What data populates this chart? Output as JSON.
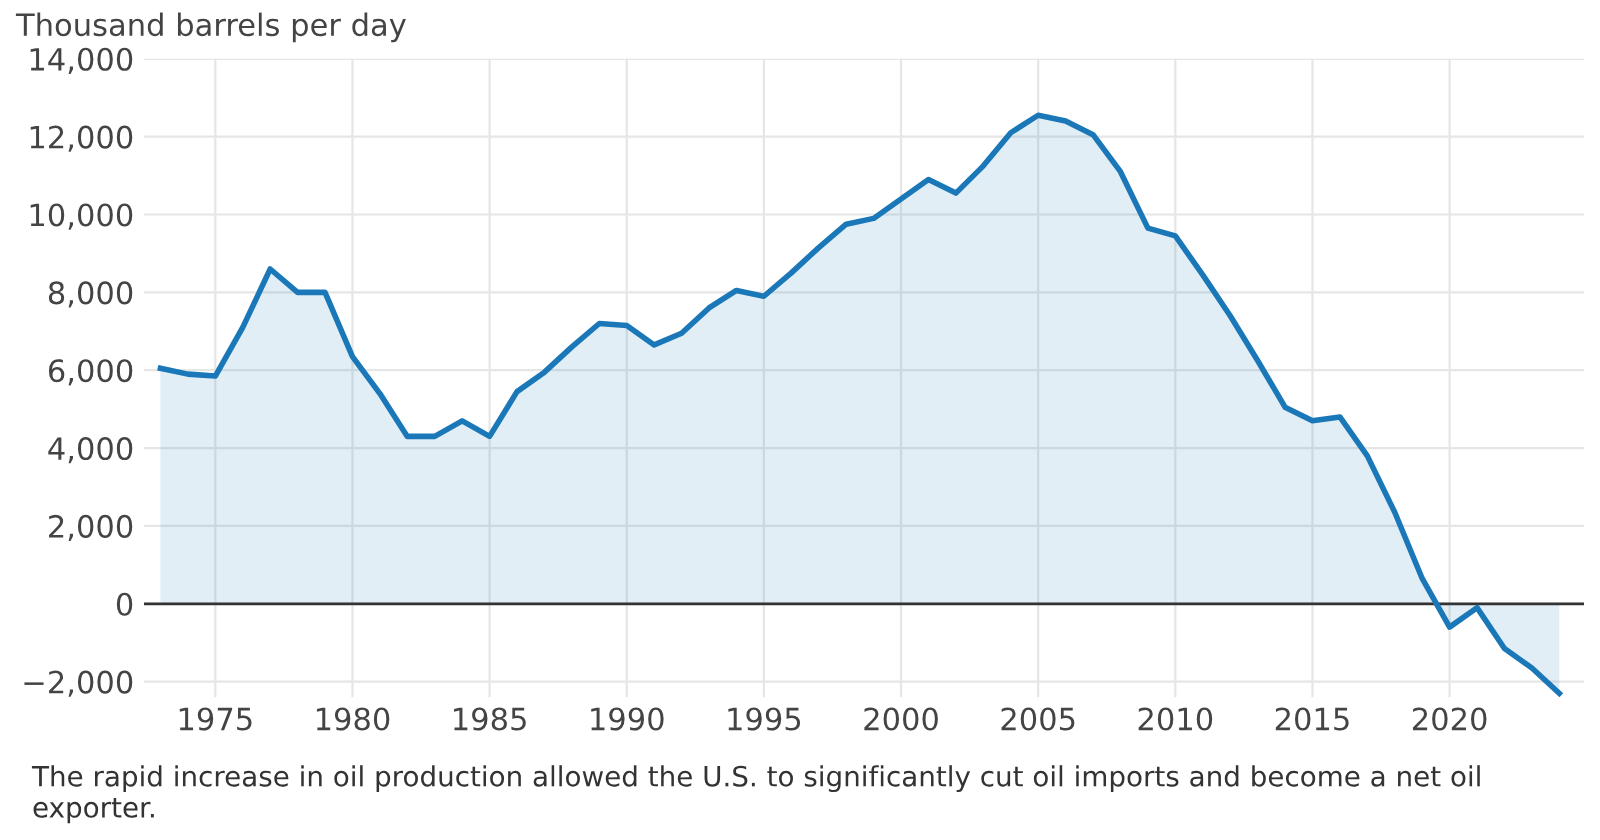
{
  "chart_data": {
    "type": "area",
    "ylabel": "Thousand barrels per day",
    "x": [
      1973,
      1974,
      1975,
      1976,
      1977,
      1978,
      1979,
      1980,
      1981,
      1982,
      1983,
      1984,
      1985,
      1986,
      1987,
      1988,
      1989,
      1990,
      1991,
      1992,
      1993,
      1994,
      1995,
      1996,
      1997,
      1998,
      1999,
      2000,
      2001,
      2002,
      2003,
      2004,
      2005,
      2006,
      2007,
      2008,
      2009,
      2010,
      2011,
      2012,
      2013,
      2014,
      2015,
      2016,
      2017,
      2018,
      2019,
      2020,
      2021,
      2022,
      2023,
      2024
    ],
    "series": [
      {
        "color": "#1b78b8",
        "values": [
          6050,
          5900,
          5850,
          7100,
          8600,
          8000,
          8000,
          6350,
          5400,
          4300,
          4300,
          4700,
          4300,
          5450,
          5950,
          6600,
          7200,
          7150,
          6650,
          6950,
          7600,
          8050,
          7900,
          8500,
          9150,
          9750,
          9900,
          10400,
          10900,
          10550,
          11250,
          12100,
          12550,
          12400,
          12050,
          11100,
          9650,
          9450,
          8450,
          7400,
          6250,
          5050,
          4700,
          4800,
          3800,
          2350,
          650,
          -600,
          -100,
          -1150,
          -1650,
          -2300
        ]
      }
    ],
    "xlim": [
      1972.4,
      2024.9
    ],
    "ylim": [
      -2400,
      14000
    ],
    "xticks": [
      1975,
      1980,
      1985,
      1990,
      1995,
      2000,
      2005,
      2010,
      2015,
      2020
    ],
    "yticks": [
      {
        "value": -2000,
        "label": "−2,000"
      },
      0,
      {
        "value": 2000,
        "label": "2,000"
      },
      {
        "value": 4000,
        "label": "4,000"
      },
      {
        "value": 6000,
        "label": "6,000"
      },
      {
        "value": 8000,
        "label": "8,000"
      },
      {
        "value": 10000,
        "label": "10,000"
      },
      {
        "value": 12000,
        "label": "12,000"
      },
      {
        "value": 14000,
        "label": "14,000"
      }
    ],
    "grid": true,
    "ref_lines": [
      {
        "axis": "y",
        "value": 0,
        "color": "#333333"
      }
    ],
    "annotations": [
      "The rapid increase in oil production allowed the U.S. to significantly cut oil imports and become a net oil exporter."
    ]
  }
}
